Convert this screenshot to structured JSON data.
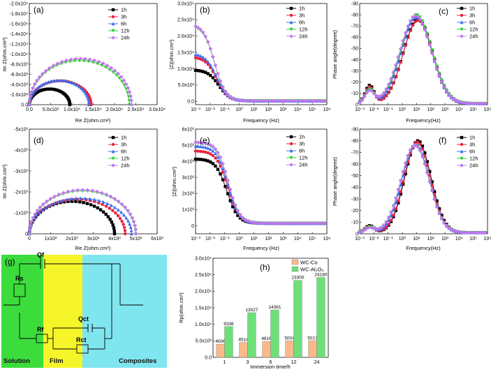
{
  "colors": {
    "1h": "#000000",
    "3h": "#e8213f",
    "6h": "#3a6df0",
    "12h": "#2ecf2e",
    "24h": "#c276f2",
    "wcco": "#f9b98a",
    "wcal": "#6ee07a",
    "solution": "#3ddc3d",
    "film": "#f5f52a",
    "composites": "#7fe6f0"
  },
  "chart_data": [
    {
      "id": "a",
      "panel_label": "(a)",
      "type": "line",
      "xlabel": "Re Z(ohm.cm²)",
      "ylabel": "Im Z(ohm.cm²)",
      "xlim": [
        0,
        30000
      ],
      "ylim": [
        0,
        -20000
      ],
      "xticks": [
        "0.0",
        "5.0x10³",
        "1.0x10⁴",
        "1.5x10⁴",
        "2.0x10⁴",
        "2.5x10⁴",
        "3.0x10⁴"
      ],
      "yticks": [
        "0.0",
        "-2.0x10³",
        "-4.0x10³",
        "-6.0x10³",
        "-8.0x10³",
        "-1.0x10⁴",
        "-1.2x10⁴",
        "-1.4x10⁴",
        "-1.6x10⁴",
        "-1.8x10⁴",
        "-2.0x10⁴"
      ],
      "series": [
        {
          "name": "1h",
          "rs": 0,
          "r": 9500,
          "peak": -3100
        },
        {
          "name": "3h",
          "rs": 0,
          "r": 14500,
          "peak": -4700
        },
        {
          "name": "6h",
          "rs": 0,
          "r": 14000,
          "peak": -4800
        },
        {
          "name": "12h",
          "rs": 0,
          "r": 23500,
          "peak": -8700
        },
        {
          "name": "24h",
          "rs": 0,
          "r": 24000,
          "peak": -9100
        }
      ]
    },
    {
      "id": "b",
      "panel_label": "(b)",
      "type": "line",
      "xlabel": "Frequency (Hz)",
      "ylabel": "|Z|(ohm.cm²)",
      "xlim": [
        -3,
        6
      ],
      "ylim": [
        -1000,
        30000
      ],
      "xticks": [
        "10⁻³",
        "10⁻²",
        "10⁻¹",
        "10⁰",
        "10¹",
        "10²",
        "10³",
        "10⁴",
        "10⁵",
        "10⁶"
      ],
      "yticks": [
        "0.0",
        "5.0x10³",
        "1.0x10⁴",
        "1.5x10⁴",
        "2.0x10⁴",
        "2.5x10⁴",
        "3.0x10⁴"
      ],
      "series": [
        {
          "name": "1h",
          "rp": 9500,
          "fc": -1.4
        },
        {
          "name": "3h",
          "rp": 13500,
          "fc": -1.55
        },
        {
          "name": "6h",
          "rp": 14500,
          "fc": -1.55
        },
        {
          "name": "12h",
          "rp": 23300,
          "fc": -1.7
        },
        {
          "name": "24h",
          "rp": 23600,
          "fc": -1.7
        }
      ]
    },
    {
      "id": "c",
      "panel_label": "(c)",
      "type": "line",
      "xlabel": "Frequency(Hz)",
      "ylabel": "Phase angle(degree)",
      "xlim": [
        -3,
        6
      ],
      "ylim": [
        0,
        -90
      ],
      "xticks": [
        "10⁻³",
        "10⁻²",
        "10⁻¹",
        "10⁰",
        "10¹",
        "10²",
        "10³",
        "10⁴",
        "10⁵",
        "10⁶"
      ],
      "yticks": [
        "0",
        "-10",
        "-20",
        "-30",
        "-40",
        "-50",
        "-60",
        "-70",
        "-80",
        "-90"
      ],
      "series": [
        {
          "name": "1h",
          "peak": -75,
          "center": 1.1,
          "width": 1.45
        },
        {
          "name": "3h",
          "peak": -74,
          "center": 1.1,
          "width": 1.45
        },
        {
          "name": "6h",
          "peak": -77,
          "center": 1.0,
          "width": 1.5
        },
        {
          "name": "12h",
          "peak": -79,
          "center": 1.0,
          "width": 1.55
        },
        {
          "name": "24h",
          "peak": -78,
          "center": 0.95,
          "width": 1.55
        }
      ]
    },
    {
      "id": "d",
      "panel_label": "(d)",
      "type": "line",
      "xlabel": "Re Z(ohm.cm²)",
      "ylabel": "Im Z(ohm.cm²)",
      "xlim": [
        0,
        6000
      ],
      "ylim": [
        0,
        -5000
      ],
      "xticks": [
        "0",
        "1x10³",
        "2x10³",
        "3x10³",
        "4x10³",
        "5x10³",
        "6x10³"
      ],
      "yticks": [
        "0",
        "-1x10³",
        "-2x10³",
        "-3x10³",
        "-4x10³",
        "-5x10³"
      ],
      "series": [
        {
          "name": "1h",
          "rs": 0,
          "r": 4000,
          "peak": -1550
        },
        {
          "name": "3h",
          "rs": 0,
          "r": 4500,
          "peak": -1650
        },
        {
          "name": "6h",
          "rs": 0,
          "r": 4800,
          "peak": -1700
        },
        {
          "name": "12h",
          "rs": 0,
          "r": 5000,
          "peak": -2050
        },
        {
          "name": "24h",
          "rs": 0,
          "r": 5000,
          "peak": -2100
        }
      ]
    },
    {
      "id": "e",
      "panel_label": "(e)",
      "type": "line",
      "xlabel": "Frequency (Hz)",
      "ylabel": "|Z|(ohm.cm²)",
      "xlim": [
        -3,
        6
      ],
      "ylim": [
        -500,
        6000
      ],
      "xticks": [
        "10⁻³",
        "10⁻²",
        "10⁻¹",
        "10⁰",
        "10¹",
        "10²",
        "10³",
        "10⁴",
        "10⁵",
        "10⁶"
      ],
      "yticks": [
        "0",
        "1x10³",
        "2x10³",
        "3x10³",
        "4x10³",
        "5x10³",
        "6x10³"
      ],
      "series": [
        {
          "name": "1h",
          "rp": 4000,
          "fc": -0.85
        },
        {
          "name": "3h",
          "rp": 4500,
          "fc": -0.8
        },
        {
          "name": "6h",
          "rp": 4800,
          "fc": -0.8
        },
        {
          "name": "12h",
          "rp": 5000,
          "fc": -0.75
        },
        {
          "name": "24h",
          "rp": 5050,
          "fc": -0.75
        }
      ]
    },
    {
      "id": "f",
      "panel_label": "(f)",
      "type": "line",
      "xlabel": "Frequency(Hz)",
      "ylabel": "Phase angle(degree)",
      "xlim": [
        -3,
        6
      ],
      "ylim": [
        0,
        -90
      ],
      "xticks": [
        "10⁻³",
        "10⁻²",
        "10⁻¹",
        "10⁰",
        "10¹",
        "10²",
        "10³",
        "10⁴",
        "10⁵",
        "10⁶"
      ],
      "yticks": [
        "0",
        "-10",
        "-20",
        "-30",
        "-40",
        "-50",
        "-60",
        "-70",
        "-80",
        "-90"
      ],
      "series": [
        {
          "name": "1h",
          "peak": -79,
          "center": 1.1,
          "width": 1.3
        },
        {
          "name": "3h",
          "peak": -78,
          "center": 1.05,
          "width": 1.3
        },
        {
          "name": "6h",
          "peak": -76,
          "center": 0.95,
          "width": 1.35
        },
        {
          "name": "12h",
          "peak": -75,
          "center": 0.9,
          "width": 1.4
        },
        {
          "name": "24h",
          "peak": -75,
          "center": 0.9,
          "width": 1.4
        }
      ]
    },
    {
      "id": "h",
      "panel_label": "(h)",
      "type": "bar",
      "xlabel": "Immersion time/h",
      "ylabel": "Rp(ohm.cm²)",
      "categories": [
        "1",
        "3",
        "6",
        "12",
        "24"
      ],
      "ylim": [
        0,
        30000
      ],
      "yticks": [
        "0.0",
        "5.0x10³",
        "1.0x10⁴",
        "1.5x10⁴",
        "2.0x10⁴",
        "2.5x10⁴",
        "3.0x10⁴"
      ],
      "series": [
        {
          "name": "WC-Co",
          "values": [
            4006,
            4514,
            4816,
            5004,
            5017
          ],
          "labels": [
            "4006",
            "4514",
            "4816",
            "5004",
            "5017"
          ]
        },
        {
          "name": "WC-Al₂O₃",
          "values": [
            9336,
            13527,
            14361,
            23300,
            24180
          ],
          "labels": [
            "9336",
            "13527",
            "14361",
            "23300",
            "24180"
          ]
        }
      ]
    }
  ],
  "circuit": {
    "panel_label": "(g)",
    "elements": {
      "rs": "Rs",
      "qf": "Qf",
      "rf": "Rf",
      "qct": "Qct",
      "rct": "Rct"
    },
    "zones": {
      "solution": "Solution",
      "film": "Film",
      "composites": "Composites"
    }
  }
}
